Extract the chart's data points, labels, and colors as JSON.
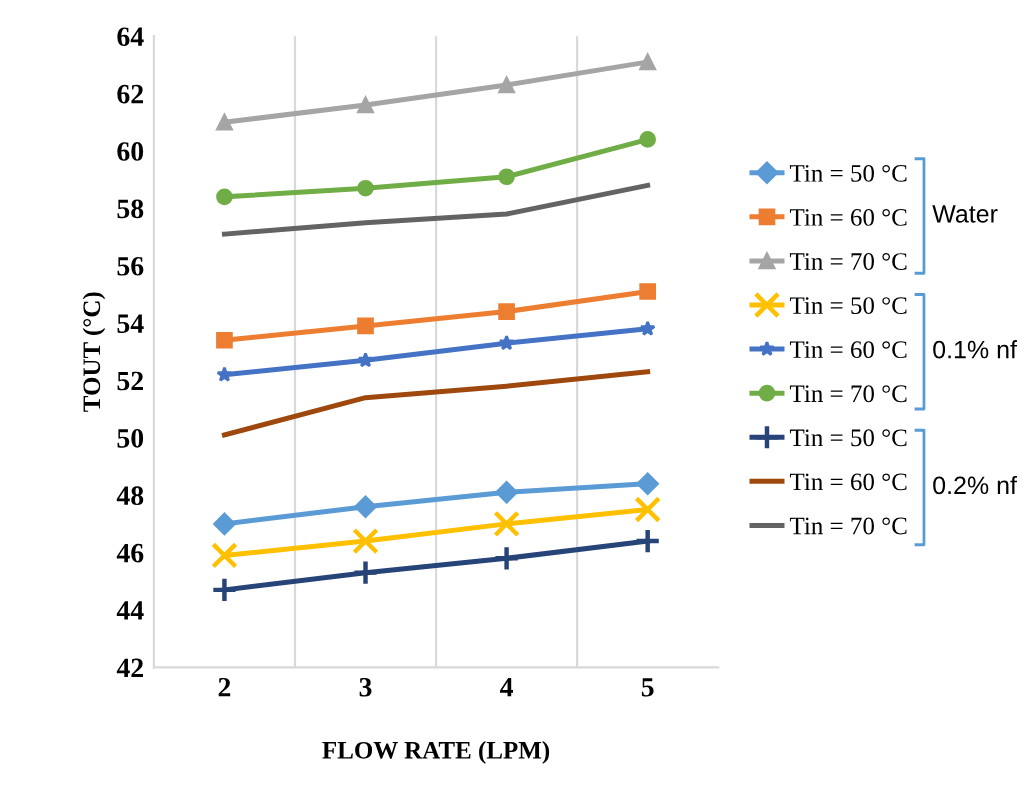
{
  "chart_data": {
    "type": "line",
    "xlabel": "FLOW RATE (LPM)",
    "ylabel": "TOUT (°C)",
    "categories": [
      "2",
      "3",
      "4",
      "5"
    ],
    "ylim": [
      42,
      64
    ],
    "yticks": [
      42,
      44,
      46,
      48,
      50,
      52,
      54,
      56,
      58,
      60,
      62,
      64
    ],
    "grid": "x",
    "legend": "right",
    "series": [
      {
        "name": "Tin = 50 °C",
        "color": "#5b9bd5",
        "marker": "diamond",
        "values": [
          47.0,
          47.6,
          48.1,
          48.4
        ]
      },
      {
        "name": "Tin = 60 °C",
        "color": "#ed7d31",
        "marker": "square",
        "values": [
          53.4,
          53.9,
          54.4,
          55.1
        ]
      },
      {
        "name": "Tin = 70 °C",
        "color": "#a5a5a5",
        "marker": "triangle",
        "values": [
          61.0,
          61.6,
          62.3,
          63.1
        ]
      },
      {
        "name": "Tin = 50 °C",
        "color": "#ffc000",
        "marker": "cross",
        "values": [
          45.9,
          46.4,
          47.0,
          47.5
        ]
      },
      {
        "name": "Tin = 60 °C",
        "color": "#4472c4",
        "marker": "star",
        "values": [
          52.2,
          52.7,
          53.3,
          53.8
        ]
      },
      {
        "name": "Tin = 70 °C",
        "color": "#70ad47",
        "marker": "circle",
        "values": [
          58.4,
          58.7,
          59.1,
          60.4
        ]
      },
      {
        "name": "Tin = 50 °C",
        "color": "#264478",
        "marker": "plus",
        "values": [
          44.7,
          45.3,
          45.8,
          46.4
        ]
      },
      {
        "name": "Tin = 60 °C",
        "color": "#9e480e",
        "marker": "none",
        "values": [
          50.1,
          51.4,
          51.8,
          52.3
        ]
      },
      {
        "name": "Tin = 70 °C",
        "color": "#636363",
        "marker": "none",
        "values": [
          57.1,
          57.5,
          57.8,
          58.8
        ]
      }
    ],
    "annotations": [
      "Water",
      "0.1% nf",
      "0.2% nf"
    ]
  }
}
